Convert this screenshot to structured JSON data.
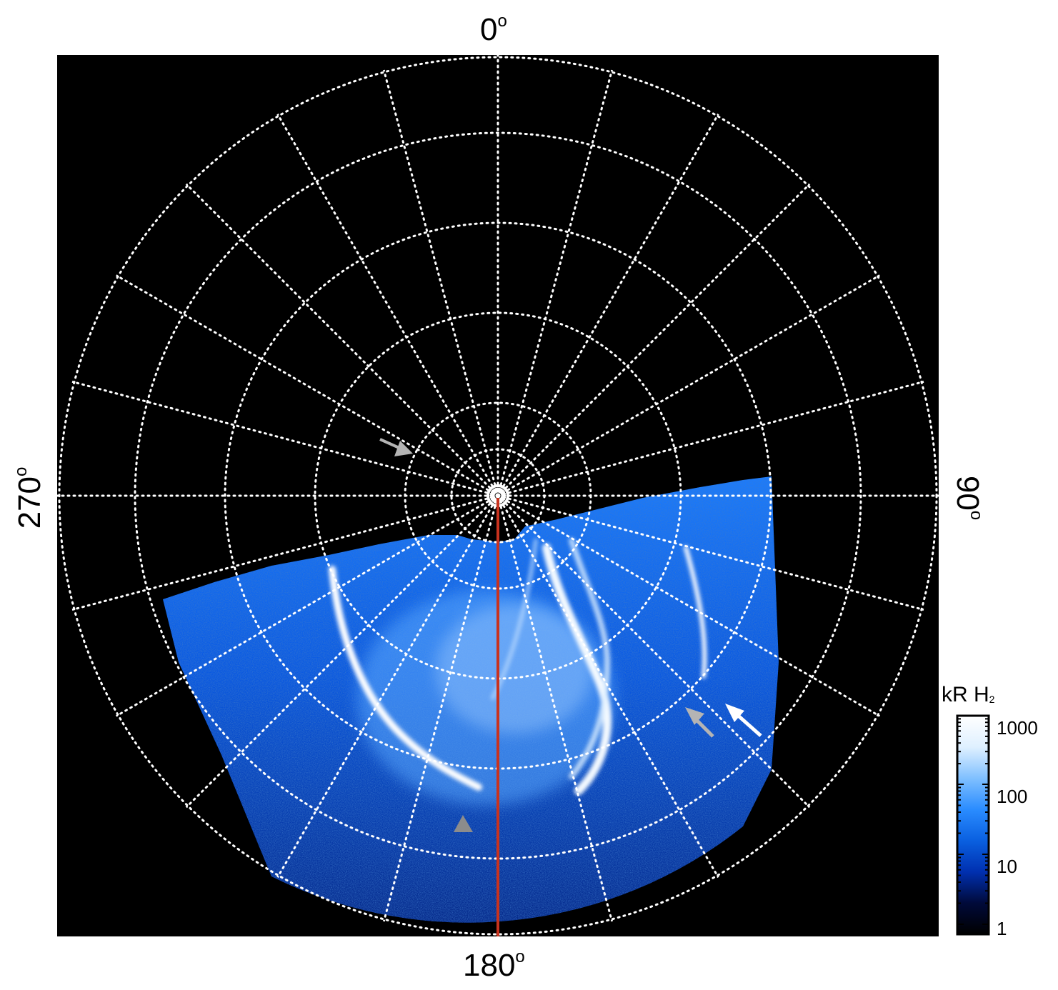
{
  "axis_labels": {
    "top": "0",
    "right": "90",
    "bottom": "180",
    "left": "270",
    "degree_symbol": "o"
  },
  "colorbar": {
    "title": "kR H",
    "title_subscript": "2",
    "tick_labels": [
      "1000",
      "100",
      "10",
      "1"
    ],
    "gradient_colors": [
      "#000000",
      "#000a3a",
      "#0030b0",
      "#0a60e0",
      "#2a8cff",
      "#80c0ff",
      "#dff0ff",
      "#ffffff"
    ]
  },
  "image": {
    "background": "#000000",
    "grid_color": "#ffffff",
    "meridian_color": "#c8321e",
    "arrow_colors": {
      "white": "#ffffff",
      "gray": "#b4b4b4",
      "dark_gray": "#8c8c8c"
    }
  }
}
